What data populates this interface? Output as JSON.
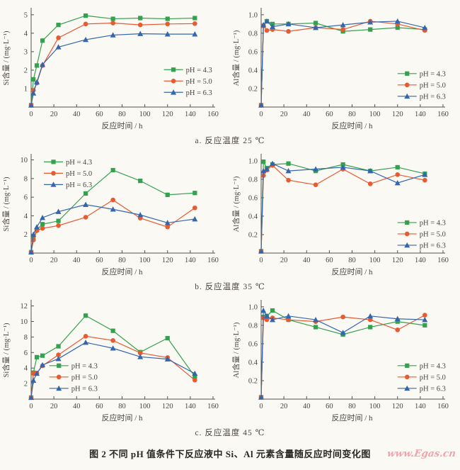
{
  "page": {
    "caption": "图 2  不同 pH 值条件下反应液中 Si、Al 元素含量随反应时间变化图",
    "watermark": "www.Egas.cn"
  },
  "colors": {
    "axis": "#55524b",
    "tick_text": "#4a463f"
  },
  "rows": [
    {
      "label": "a. 反应温度 25 ℃"
    },
    {
      "label": "b. 反应温度 35 ℃"
    },
    {
      "label": "c. 反应温度 45 ℃"
    }
  ],
  "chart_data": [
    {
      "id": "si_25",
      "type": "line",
      "xlabel": "反应时间 / h",
      "ylabel": "Si含量 / (mg·L⁻¹)",
      "xlim": [
        0,
        160
      ],
      "ylim": [
        0,
        5.3
      ],
      "xticks": [
        0,
        20,
        40,
        60,
        80,
        100,
        120,
        140,
        160
      ],
      "yticks": [
        "1",
        "2",
        "3",
        "4",
        "5"
      ],
      "grid": false,
      "legend_pos": {
        "fx": 0.73,
        "fy": 0.56
      },
      "x": [
        0,
        2,
        5,
        10,
        24,
        48,
        72,
        96,
        120,
        144
      ],
      "series": [
        {
          "name": "pH = 4.3",
          "marker": "square",
          "color": "#33a14e",
          "values": [
            0.1,
            1.5,
            2.25,
            3.6,
            4.45,
            4.95,
            4.78,
            4.82,
            4.78,
            4.82
          ]
        },
        {
          "name": "pH = 5.0",
          "marker": "circle",
          "color": "#e85a30",
          "values": [
            0.1,
            0.9,
            1.3,
            2.25,
            3.75,
            4.5,
            4.55,
            4.45,
            4.5,
            4.52
          ]
        },
        {
          "name": "pH = 6.3",
          "marker": "triangle",
          "color": "#3566ad",
          "values": [
            0.1,
            0.75,
            1.35,
            2.3,
            3.25,
            3.65,
            3.9,
            3.97,
            3.95,
            3.95
          ]
        }
      ]
    },
    {
      "id": "al_25",
      "type": "line",
      "xlabel": "反应时间 / h",
      "ylabel": "Al含量 / (mg·L⁻¹)",
      "xlim": [
        0,
        160
      ],
      "ylim": [
        0,
        1.06
      ],
      "xticks": [
        0,
        20,
        40,
        60,
        80,
        100,
        120,
        140,
        160
      ],
      "yticks": [
        "0.2",
        "0.4",
        "0.6",
        "0.8",
        "1.0"
      ],
      "grid": false,
      "legend_pos": {
        "fx": 0.75,
        "fy": 0.6
      },
      "x": [
        0,
        2,
        5,
        10,
        24,
        48,
        72,
        96,
        120,
        144
      ],
      "series": [
        {
          "name": "pH = 4.3",
          "marker": "square",
          "color": "#33a14e",
          "values": [
            0.02,
            0.88,
            0.93,
            0.9,
            0.9,
            0.91,
            0.82,
            0.84,
            0.86,
            0.84
          ]
        },
        {
          "name": "pH = 5.0",
          "marker": "circle",
          "color": "#e85a30",
          "values": [
            0.02,
            0.88,
            0.83,
            0.84,
            0.82,
            0.86,
            0.84,
            0.93,
            0.9,
            0.83
          ]
        },
        {
          "name": "pH = 6.3",
          "marker": "triangle",
          "color": "#3566ad",
          "values": [
            0.02,
            0.89,
            0.93,
            0.87,
            0.9,
            0.86,
            0.89,
            0.92,
            0.93,
            0.86
          ]
        }
      ]
    },
    {
      "id": "si_35",
      "type": "line",
      "xlabel": "反应时间 / h",
      "ylabel": "Si含量 / (mg·L⁻¹)",
      "xlim": [
        0,
        160
      ],
      "ylim": [
        0,
        10.5
      ],
      "xticks": [
        0,
        20,
        40,
        60,
        80,
        100,
        120,
        140,
        160
      ],
      "yticks": [
        "2",
        "4",
        "6",
        "8",
        "10"
      ],
      "grid": false,
      "legend_pos": {
        "fx": 0.07,
        "fy": 0.01
      },
      "x": [
        0,
        2,
        5,
        10,
        24,
        48,
        72,
        96,
        120,
        144
      ],
      "series": [
        {
          "name": "pH = 4.3",
          "marker": "square",
          "color": "#33a14e",
          "values": [
            0.1,
            1.55,
            2.5,
            3.1,
            3.45,
            6.4,
            8.9,
            7.75,
            6.25,
            6.45
          ]
        },
        {
          "name": "pH = 5.0",
          "marker": "circle",
          "color": "#e85a30",
          "values": [
            0.1,
            1.4,
            2.4,
            2.65,
            2.95,
            3.85,
            5.7,
            3.75,
            2.8,
            4.85
          ]
        },
        {
          "name": "pH = 6.3",
          "marker": "triangle",
          "color": "#3566ad",
          "values": [
            0.1,
            2.0,
            2.8,
            3.8,
            4.45,
            5.2,
            4.7,
            4.1,
            3.25,
            3.65
          ]
        }
      ]
    },
    {
      "id": "al_35",
      "type": "line",
      "xlabel": "反应时间 / h",
      "ylabel": "Al含量 / (mg·L⁻¹)",
      "xlim": [
        0,
        160
      ],
      "ylim": [
        0,
        1.06
      ],
      "xticks": [
        0,
        20,
        40,
        60,
        80,
        100,
        120,
        140,
        160
      ],
      "yticks": [
        "0.2",
        "0.4",
        "0.6",
        "0.8",
        "1.0"
      ],
      "grid": false,
      "legend_pos": {
        "fx": 0.75,
        "fy": 0.63
      },
      "x": [
        0,
        2,
        5,
        10,
        24,
        48,
        72,
        96,
        120,
        144
      ],
      "series": [
        {
          "name": "pH = 4.3",
          "marker": "square",
          "color": "#33a14e",
          "values": [
            0.02,
            0.99,
            0.92,
            0.96,
            0.97,
            0.89,
            0.96,
            0.89,
            0.93,
            0.86
          ]
        },
        {
          "name": "pH = 5.0",
          "marker": "circle",
          "color": "#e85a30",
          "values": [
            0.02,
            0.84,
            0.9,
            0.95,
            0.79,
            0.74,
            0.91,
            0.75,
            0.85,
            0.79
          ]
        },
        {
          "name": "pH = 6.3",
          "marker": "triangle",
          "color": "#3566ad",
          "values": [
            0.02,
            0.89,
            0.91,
            0.97,
            0.89,
            0.91,
            0.93,
            0.89,
            0.76,
            0.85
          ]
        }
      ]
    },
    {
      "id": "si_45",
      "type": "line",
      "xlabel": "反应时间 / h",
      "ylabel": "Si含量 / (mg·L⁻¹)",
      "xlim": [
        0,
        160
      ],
      "ylim": [
        0,
        12.6
      ],
      "xticks": [
        0,
        20,
        40,
        60,
        80,
        100,
        120,
        140,
        160
      ],
      "yticks": [
        "2",
        "4",
        "6",
        "8",
        "10",
        "12"
      ],
      "grid": false,
      "legend_pos": {
        "fx": 0.1,
        "fy": 0.6
      },
      "x": [
        0,
        2,
        5,
        10,
        24,
        48,
        72,
        96,
        120,
        144
      ],
      "series": [
        {
          "name": "pH = 4.3",
          "marker": "square",
          "color": "#33a14e",
          "values": [
            0.2,
            3.4,
            5.4,
            5.6,
            6.8,
            10.75,
            8.8,
            6.05,
            7.85,
            2.9
          ]
        },
        {
          "name": "pH = 5.0",
          "marker": "circle",
          "color": "#e85a30",
          "values": [
            0.2,
            3.3,
            3.35,
            4.3,
            5.7,
            8.1,
            7.55,
            5.95,
            5.35,
            2.45
          ]
        },
        {
          "name": "pH = 6.3",
          "marker": "triangle",
          "color": "#3566ad",
          "values": [
            0.2,
            2.4,
            3.3,
            4.4,
            5.2,
            7.3,
            6.55,
            5.45,
            5.15,
            3.3
          ]
        }
      ]
    },
    {
      "id": "al_45",
      "type": "line",
      "xlabel": "反应时间 / h",
      "ylabel": "Al含量 / (mg·L⁻¹)",
      "xlim": [
        0,
        160
      ],
      "ylim": [
        0,
        1.06
      ],
      "xticks": [
        0,
        20,
        40,
        60,
        80,
        100,
        120,
        140,
        160
      ],
      "yticks": [
        "0.2",
        "0.4",
        "0.6",
        "0.8",
        "1.0"
      ],
      "grid": false,
      "legend_pos": {
        "fx": 0.75,
        "fy": 0.6
      },
      "x": [
        0,
        2,
        5,
        10,
        24,
        48,
        72,
        96,
        120,
        144
      ],
      "series": [
        {
          "name": "pH = 4.3",
          "marker": "square",
          "color": "#33a14e",
          "values": [
            0.02,
            0.89,
            0.9,
            0.96,
            0.86,
            0.78,
            0.7,
            0.78,
            0.84,
            0.8
          ]
        },
        {
          "name": "pH = 5.0",
          "marker": "circle",
          "color": "#e85a30",
          "values": [
            0.02,
            0.88,
            0.86,
            0.88,
            0.86,
            0.84,
            0.89,
            0.86,
            0.75,
            0.91
          ]
        },
        {
          "name": "pH = 6.3",
          "marker": "triangle",
          "color": "#3566ad",
          "values": [
            0.02,
            0.96,
            0.9,
            0.86,
            0.9,
            0.86,
            0.72,
            0.9,
            0.87,
            0.86
          ]
        }
      ]
    }
  ]
}
